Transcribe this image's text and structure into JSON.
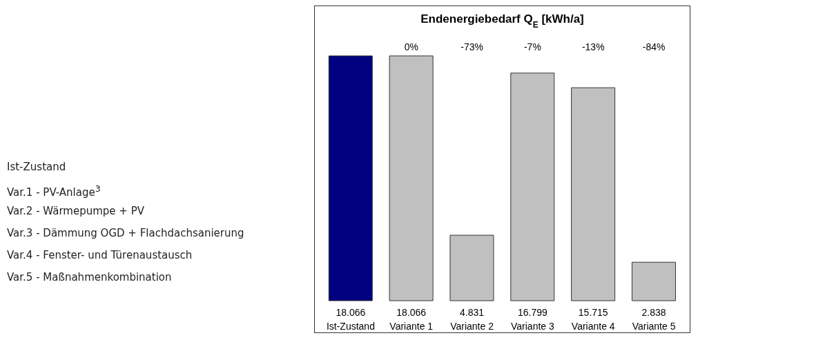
{
  "chart_data": {
    "type": "bar",
    "title": "Endenergiebedarf Q$_{E}$  [kWh/a]",
    "categories": [
      "Ist-Zustand",
      "Variante 1",
      "Variante 2",
      "Variante 3",
      "Variante 4",
      "Variante 5"
    ],
    "values": [
      18066,
      18066,
      4831,
      16799,
      15715,
      2838
    ],
    "colors": [
      "#000080",
      "#c0c0c0",
      "#c0c0c0",
      "#c0c0c0",
      "#c0c0c0",
      "#c0c0c0"
    ],
    "value_labels": [
      "18.066",
      "18.066",
      "4.831",
      "16.799",
      "15.715",
      "2.838"
    ],
    "annotations": [
      "0%",
      "-73%",
      "-7%",
      "-13%",
      "-84%",
      "Ist-Zustand",
      "Var.1 - PV-Anlage$^{3}$",
      "Var.2 - Wärmepumpe + PV",
      "Var.3 - Dämmung OGD + Flachdachsanierung",
      "Var.4 - Fenster- und Türenaustausch",
      "Var.5 - Maßnahmenkombination"
    ],
    "grid": false,
    "legend": false
  }
}
